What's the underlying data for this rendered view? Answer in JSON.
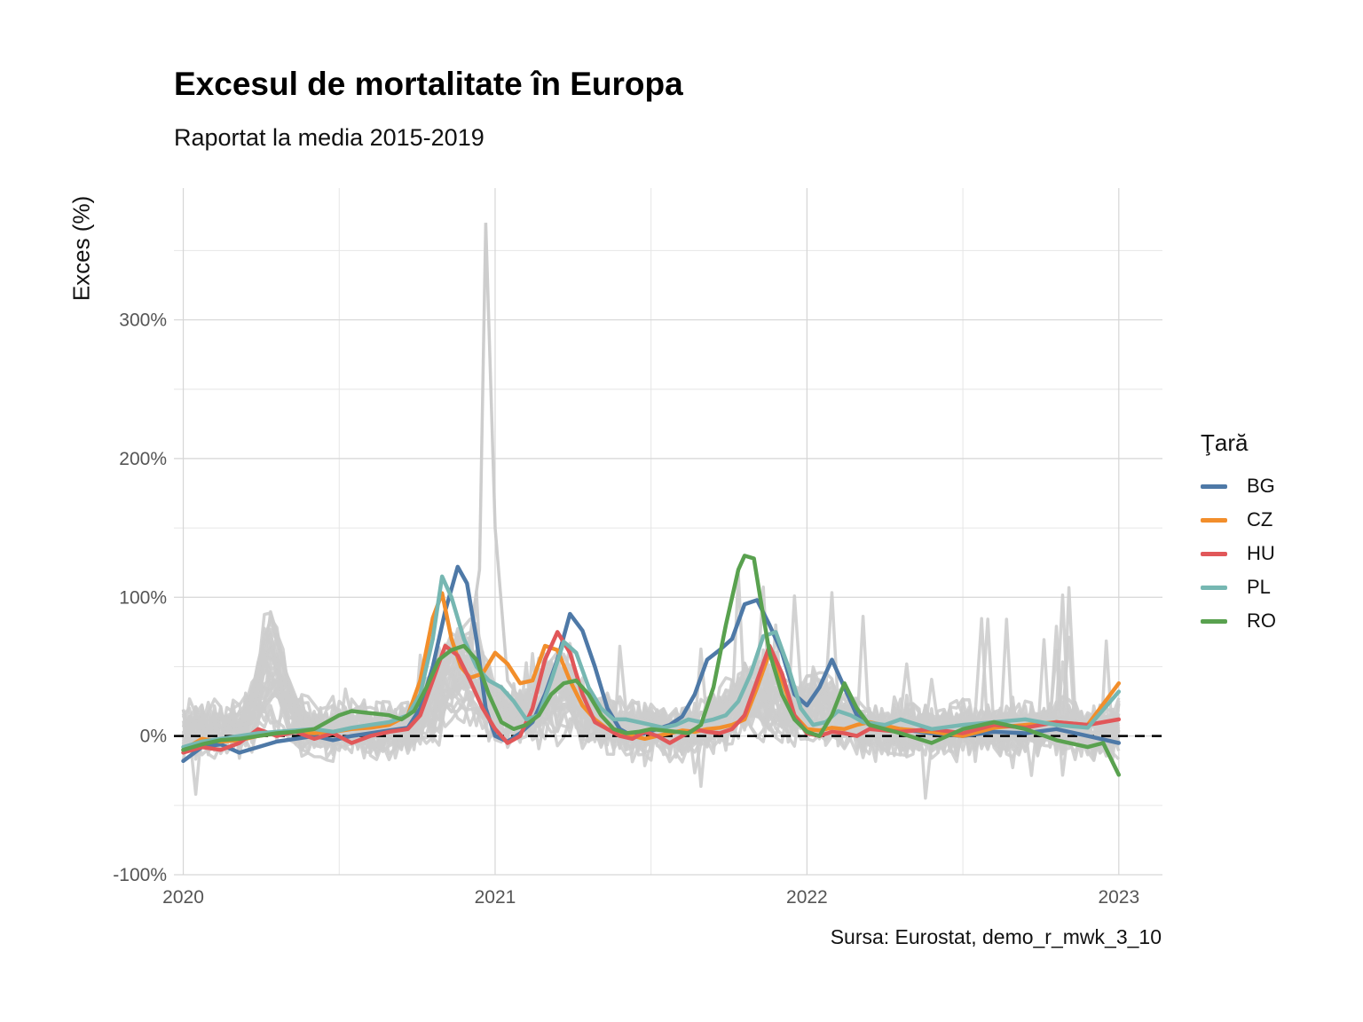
{
  "chart_data": {
    "type": "line",
    "title": "Excesul de mortalitate în Europa",
    "subtitle": "Raportat la media 2015-2019",
    "ylabel": "Exces (%)",
    "xlabel": "",
    "caption": "Sursa: Eurostat, demo_r_mwk_3_10",
    "legend_title": "Ţară",
    "legend_position": "right",
    "grid": true,
    "reference_line": {
      "y": 0,
      "style": "dashed"
    },
    "xlim": [
      2019.97,
      2023.14
    ],
    "ylim": [
      -100,
      395
    ],
    "x_ticks": [
      2020,
      2021,
      2022,
      2023
    ],
    "x_tick_labels": [
      "2020",
      "2021",
      "2022",
      "2023"
    ],
    "y_ticks": [
      -100,
      0,
      100,
      200,
      300
    ],
    "y_tick_labels": [
      "-100%",
      "0%",
      "100%",
      "200%",
      "300%"
    ],
    "series": [
      {
        "name": "BG",
        "color": "#4e79a7",
        "points": [
          [
            2020.0,
            -18
          ],
          [
            2020.06,
            -8
          ],
          [
            2020.12,
            -6
          ],
          [
            2020.18,
            -12
          ],
          [
            2020.24,
            -8
          ],
          [
            2020.3,
            -4
          ],
          [
            2020.36,
            -2
          ],
          [
            2020.42,
            0
          ],
          [
            2020.48,
            -3
          ],
          [
            2020.54,
            0
          ],
          [
            2020.6,
            2
          ],
          [
            2020.66,
            4
          ],
          [
            2020.72,
            6
          ],
          [
            2020.76,
            20
          ],
          [
            2020.8,
            50
          ],
          [
            2020.84,
            90
          ],
          [
            2020.88,
            122
          ],
          [
            2020.91,
            110
          ],
          [
            2020.94,
            70
          ],
          [
            2020.97,
            20
          ],
          [
            2021.0,
            0
          ],
          [
            2021.04,
            -4
          ],
          [
            2021.08,
            2
          ],
          [
            2021.12,
            10
          ],
          [
            2021.16,
            30
          ],
          [
            2021.2,
            55
          ],
          [
            2021.24,
            88
          ],
          [
            2021.28,
            76
          ],
          [
            2021.32,
            50
          ],
          [
            2021.36,
            20
          ],
          [
            2021.4,
            5
          ],
          [
            2021.44,
            0
          ],
          [
            2021.48,
            2
          ],
          [
            2021.52,
            5
          ],
          [
            2021.56,
            8
          ],
          [
            2021.6,
            14
          ],
          [
            2021.64,
            30
          ],
          [
            2021.68,
            55
          ],
          [
            2021.72,
            62
          ],
          [
            2021.76,
            70
          ],
          [
            2021.8,
            95
          ],
          [
            2021.84,
            98
          ],
          [
            2021.88,
            80
          ],
          [
            2021.92,
            60
          ],
          [
            2021.96,
            30
          ],
          [
            2022.0,
            22
          ],
          [
            2022.04,
            35
          ],
          [
            2022.08,
            55
          ],
          [
            2022.12,
            35
          ],
          [
            2022.16,
            15
          ],
          [
            2022.2,
            8
          ],
          [
            2022.3,
            5
          ],
          [
            2022.4,
            2
          ],
          [
            2022.5,
            0
          ],
          [
            2022.6,
            3
          ],
          [
            2022.7,
            2
          ],
          [
            2022.8,
            5
          ],
          [
            2022.9,
            0
          ],
          [
            2023.0,
            -5
          ]
        ]
      },
      {
        "name": "CZ",
        "color": "#f28e2b",
        "points": [
          [
            2020.0,
            -10
          ],
          [
            2020.06,
            -2
          ],
          [
            2020.12,
            -4
          ],
          [
            2020.18,
            -3
          ],
          [
            2020.24,
            0
          ],
          [
            2020.3,
            2
          ],
          [
            2020.36,
            3
          ],
          [
            2020.42,
            2
          ],
          [
            2020.48,
            3
          ],
          [
            2020.54,
            5
          ],
          [
            2020.6,
            6
          ],
          [
            2020.66,
            8
          ],
          [
            2020.72,
            15
          ],
          [
            2020.76,
            40
          ],
          [
            2020.8,
            85
          ],
          [
            2020.83,
            103
          ],
          [
            2020.86,
            70
          ],
          [
            2020.89,
            50
          ],
          [
            2020.92,
            42
          ],
          [
            2020.96,
            45
          ],
          [
            2021.0,
            60
          ],
          [
            2021.04,
            52
          ],
          [
            2021.08,
            38
          ],
          [
            2021.12,
            40
          ],
          [
            2021.16,
            65
          ],
          [
            2021.2,
            62
          ],
          [
            2021.24,
            40
          ],
          [
            2021.28,
            22
          ],
          [
            2021.32,
            12
          ],
          [
            2021.36,
            5
          ],
          [
            2021.4,
            2
          ],
          [
            2021.44,
            0
          ],
          [
            2021.48,
            -2
          ],
          [
            2021.52,
            0
          ],
          [
            2021.56,
            2
          ],
          [
            2021.6,
            4
          ],
          [
            2021.64,
            3
          ],
          [
            2021.68,
            5
          ],
          [
            2021.72,
            6
          ],
          [
            2021.76,
            8
          ],
          [
            2021.8,
            12
          ],
          [
            2021.84,
            35
          ],
          [
            2021.88,
            60
          ],
          [
            2021.92,
            40
          ],
          [
            2021.96,
            15
          ],
          [
            2022.0,
            5
          ],
          [
            2022.04,
            4
          ],
          [
            2022.08,
            6
          ],
          [
            2022.12,
            5
          ],
          [
            2022.16,
            8
          ],
          [
            2022.2,
            10
          ],
          [
            2022.3,
            5
          ],
          [
            2022.4,
            3
          ],
          [
            2022.5,
            0
          ],
          [
            2022.6,
            6
          ],
          [
            2022.7,
            8
          ],
          [
            2022.8,
            10
          ],
          [
            2022.9,
            8
          ],
          [
            2023.0,
            38
          ]
        ]
      },
      {
        "name": "HU",
        "color": "#e15759",
        "points": [
          [
            2020.0,
            -12
          ],
          [
            2020.06,
            -8
          ],
          [
            2020.12,
            -10
          ],
          [
            2020.18,
            -5
          ],
          [
            2020.24,
            5
          ],
          [
            2020.3,
            0
          ],
          [
            2020.36,
            3
          ],
          [
            2020.42,
            -2
          ],
          [
            2020.48,
            2
          ],
          [
            2020.54,
            -5
          ],
          [
            2020.6,
            0
          ],
          [
            2020.66,
            3
          ],
          [
            2020.72,
            5
          ],
          [
            2020.76,
            15
          ],
          [
            2020.8,
            40
          ],
          [
            2020.84,
            65
          ],
          [
            2020.88,
            58
          ],
          [
            2020.92,
            40
          ],
          [
            2020.96,
            20
          ],
          [
            2021.0,
            5
          ],
          [
            2021.04,
            -5
          ],
          [
            2021.08,
            0
          ],
          [
            2021.12,
            20
          ],
          [
            2021.16,
            55
          ],
          [
            2021.2,
            75
          ],
          [
            2021.24,
            60
          ],
          [
            2021.28,
            30
          ],
          [
            2021.32,
            10
          ],
          [
            2021.36,
            5
          ],
          [
            2021.4,
            0
          ],
          [
            2021.44,
            -2
          ],
          [
            2021.48,
            3
          ],
          [
            2021.52,
            0
          ],
          [
            2021.56,
            -5
          ],
          [
            2021.6,
            0
          ],
          [
            2021.64,
            5
          ],
          [
            2021.68,
            3
          ],
          [
            2021.72,
            2
          ],
          [
            2021.76,
            5
          ],
          [
            2021.8,
            15
          ],
          [
            2021.84,
            40
          ],
          [
            2021.88,
            65
          ],
          [
            2021.92,
            45
          ],
          [
            2021.96,
            15
          ],
          [
            2022.0,
            2
          ],
          [
            2022.04,
            0
          ],
          [
            2022.08,
            3
          ],
          [
            2022.12,
            2
          ],
          [
            2022.16,
            0
          ],
          [
            2022.2,
            5
          ],
          [
            2022.3,
            3
          ],
          [
            2022.4,
            5
          ],
          [
            2022.5,
            2
          ],
          [
            2022.6,
            8
          ],
          [
            2022.7,
            6
          ],
          [
            2022.8,
            10
          ],
          [
            2022.9,
            8
          ],
          [
            2023.0,
            12
          ]
        ]
      },
      {
        "name": "PL",
        "color": "#76b7b2",
        "points": [
          [
            2020.0,
            -8
          ],
          [
            2020.06,
            -4
          ],
          [
            2020.12,
            -2
          ],
          [
            2020.18,
            0
          ],
          [
            2020.24,
            2
          ],
          [
            2020.3,
            3
          ],
          [
            2020.36,
            4
          ],
          [
            2020.42,
            5
          ],
          [
            2020.48,
            3
          ],
          [
            2020.54,
            6
          ],
          [
            2020.6,
            8
          ],
          [
            2020.66,
            10
          ],
          [
            2020.72,
            15
          ],
          [
            2020.76,
            30
          ],
          [
            2020.8,
            70
          ],
          [
            2020.83,
            115
          ],
          [
            2020.86,
            100
          ],
          [
            2020.9,
            70
          ],
          [
            2020.94,
            50
          ],
          [
            2020.98,
            40
          ],
          [
            2021.02,
            35
          ],
          [
            2021.06,
            25
          ],
          [
            2021.1,
            12
          ],
          [
            2021.14,
            15
          ],
          [
            2021.18,
            40
          ],
          [
            2021.22,
            68
          ],
          [
            2021.26,
            60
          ],
          [
            2021.3,
            35
          ],
          [
            2021.34,
            20
          ],
          [
            2021.38,
            12
          ],
          [
            2021.42,
            12
          ],
          [
            2021.46,
            10
          ],
          [
            2021.5,
            8
          ],
          [
            2021.54,
            6
          ],
          [
            2021.58,
            8
          ],
          [
            2021.62,
            12
          ],
          [
            2021.66,
            10
          ],
          [
            2021.7,
            12
          ],
          [
            2021.74,
            15
          ],
          [
            2021.78,
            25
          ],
          [
            2021.82,
            45
          ],
          [
            2021.86,
            72
          ],
          [
            2021.9,
            75
          ],
          [
            2021.94,
            50
          ],
          [
            2021.98,
            20
          ],
          [
            2022.02,
            8
          ],
          [
            2022.06,
            10
          ],
          [
            2022.1,
            18
          ],
          [
            2022.14,
            15
          ],
          [
            2022.18,
            10
          ],
          [
            2022.25,
            8
          ],
          [
            2022.3,
            12
          ],
          [
            2022.4,
            5
          ],
          [
            2022.5,
            8
          ],
          [
            2022.6,
            10
          ],
          [
            2022.7,
            12
          ],
          [
            2022.8,
            8
          ],
          [
            2022.9,
            6
          ],
          [
            2023.0,
            32
          ]
        ]
      },
      {
        "name": "RO",
        "color": "#59a14f",
        "points": [
          [
            2020.0,
            -10
          ],
          [
            2020.06,
            -6
          ],
          [
            2020.12,
            -3
          ],
          [
            2020.18,
            -2
          ],
          [
            2020.24,
            0
          ],
          [
            2020.3,
            2
          ],
          [
            2020.36,
            3
          ],
          [
            2020.42,
            5
          ],
          [
            2020.46,
            10
          ],
          [
            2020.5,
            15
          ],
          [
            2020.54,
            18
          ],
          [
            2020.58,
            17
          ],
          [
            2020.62,
            16
          ],
          [
            2020.66,
            15
          ],
          [
            2020.7,
            12
          ],
          [
            2020.74,
            18
          ],
          [
            2020.78,
            35
          ],
          [
            2020.82,
            55
          ],
          [
            2020.86,
            62
          ],
          [
            2020.9,
            65
          ],
          [
            2020.94,
            55
          ],
          [
            2020.98,
            30
          ],
          [
            2021.02,
            10
          ],
          [
            2021.06,
            5
          ],
          [
            2021.1,
            8
          ],
          [
            2021.14,
            15
          ],
          [
            2021.18,
            30
          ],
          [
            2021.22,
            38
          ],
          [
            2021.26,
            40
          ],
          [
            2021.3,
            30
          ],
          [
            2021.34,
            15
          ],
          [
            2021.38,
            5
          ],
          [
            2021.42,
            2
          ],
          [
            2021.46,
            3
          ],
          [
            2021.5,
            5
          ],
          [
            2021.54,
            4
          ],
          [
            2021.58,
            3
          ],
          [
            2021.62,
            2
          ],
          [
            2021.66,
            8
          ],
          [
            2021.7,
            35
          ],
          [
            2021.74,
            80
          ],
          [
            2021.78,
            120
          ],
          [
            2021.8,
            130
          ],
          [
            2021.83,
            128
          ],
          [
            2021.85,
            100
          ],
          [
            2021.88,
            60
          ],
          [
            2021.92,
            30
          ],
          [
            2021.96,
            12
          ],
          [
            2022.0,
            3
          ],
          [
            2022.04,
            0
          ],
          [
            2022.08,
            15
          ],
          [
            2022.12,
            38
          ],
          [
            2022.16,
            20
          ],
          [
            2022.2,
            8
          ],
          [
            2022.3,
            2
          ],
          [
            2022.4,
            -5
          ],
          [
            2022.5,
            5
          ],
          [
            2022.6,
            10
          ],
          [
            2022.7,
            5
          ],
          [
            2022.8,
            -3
          ],
          [
            2022.9,
            -8
          ],
          [
            2022.95,
            -5
          ],
          [
            2023.0,
            -28
          ]
        ]
      }
    ],
    "background_series_note": ""
  }
}
